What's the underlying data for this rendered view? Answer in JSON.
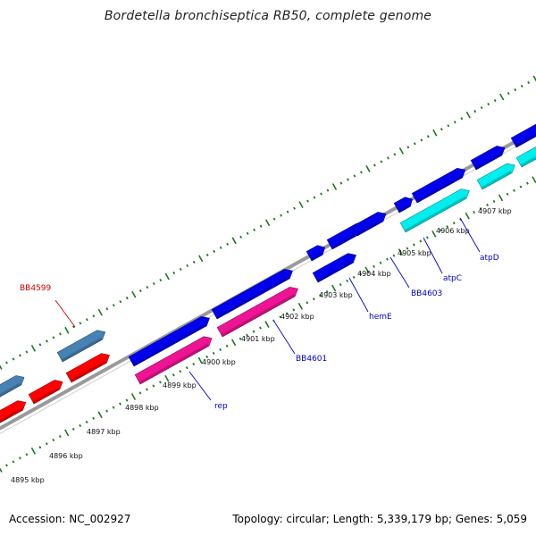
{
  "title": "Bordetella bronchiseptica RB50, complete genome",
  "footer": {
    "accession": "Accession: NC_002927",
    "topology": "Topology: circular; Length: 5,339,179 bp; Genes: 5,059"
  },
  "colors": {
    "backbone": "#888888",
    "tick_marks": "#1a7a1a",
    "strand_forward_orange": "#ff0000",
    "strand_forward_steel": "#4682b4",
    "strand_blue": "#0000ee",
    "strand_magenta": "#ee1493",
    "strand_cyan": "#00eeee",
    "label_blue": "#0000cc",
    "label_red": "#cc0000"
  },
  "scale_labels": [
    "4895 kbp",
    "4896 kbp",
    "4897 kbp",
    "4898 kbp",
    "4899 kbp",
    "4900 kbp",
    "4901 kbp",
    "4902 kbp",
    "4903 kbp",
    "4904 kbp",
    "4905 kbp",
    "4906 kbp",
    "4907 kbp"
  ],
  "gene_labels": [
    "BB4599",
    "rep",
    "BB4601",
    "hemE",
    "BB4603",
    "atpC",
    "atpD"
  ]
}
